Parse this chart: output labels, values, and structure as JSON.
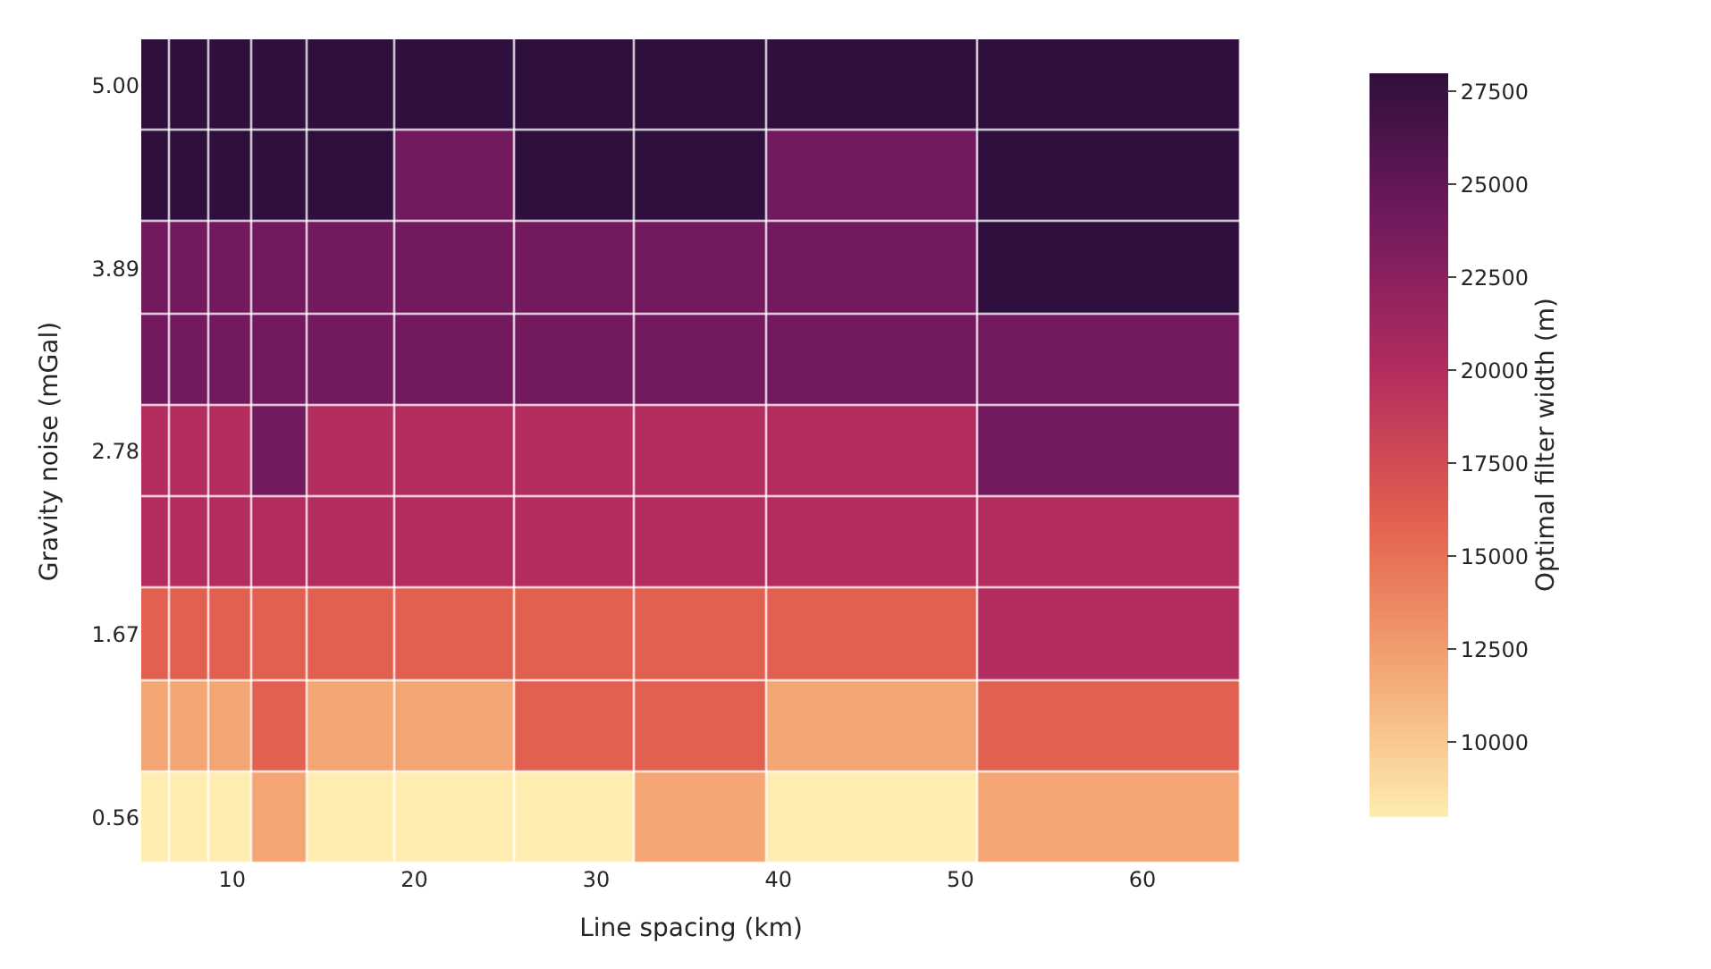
{
  "chart_data": {
    "type": "heatmap",
    "xlabel": "Line spacing (km)",
    "ylabel": "Gravity noise (mGal)",
    "clabel": "Optimal filter width (m)",
    "x": [
      5.8,
      7.4,
      10.0,
      12.2,
      16.0,
      21.8,
      29.2,
      35.0,
      43.8,
      58.2
    ],
    "xlim": [
      5.0,
      65.4
    ],
    "xticks": [
      10,
      20,
      30,
      40,
      50,
      60
    ],
    "y_categories": [
      "5.00",
      null,
      "3.89",
      null,
      "2.78",
      null,
      "1.67",
      null,
      "0.56"
    ],
    "cells": [
      [
        28000,
        28000,
        28000,
        28000,
        28000,
        28000,
        28000,
        28000,
        28000,
        28000
      ],
      [
        28000,
        28000,
        28000,
        28000,
        28000,
        24000,
        28000,
        28000,
        24000,
        28000
      ],
      [
        24000,
        24000,
        24000,
        24000,
        24000,
        24000,
        24000,
        24000,
        24000,
        28000
      ],
      [
        24000,
        24000,
        24000,
        24000,
        24000,
        24000,
        24000,
        24000,
        24000,
        24000
      ],
      [
        20000,
        20000,
        20000,
        24000,
        20000,
        20000,
        20000,
        20000,
        20000,
        24000
      ],
      [
        20000,
        20000,
        20000,
        20000,
        20000,
        20000,
        20000,
        20000,
        20000,
        20000
      ],
      [
        16000,
        16000,
        16000,
        16000,
        16000,
        16000,
        16000,
        16000,
        16000,
        20000
      ],
      [
        12000,
        12000,
        12000,
        16000,
        12000,
        12000,
        16000,
        16000,
        12000,
        16000
      ],
      [
        8000,
        8000,
        8000,
        12000,
        8000,
        8000,
        8000,
        12000,
        8000,
        12000
      ]
    ],
    "clim": [
      8000,
      28000
    ],
    "cticks": [
      10000,
      12500,
      15000,
      17500,
      20000,
      22500,
      25000,
      27500
    ]
  }
}
